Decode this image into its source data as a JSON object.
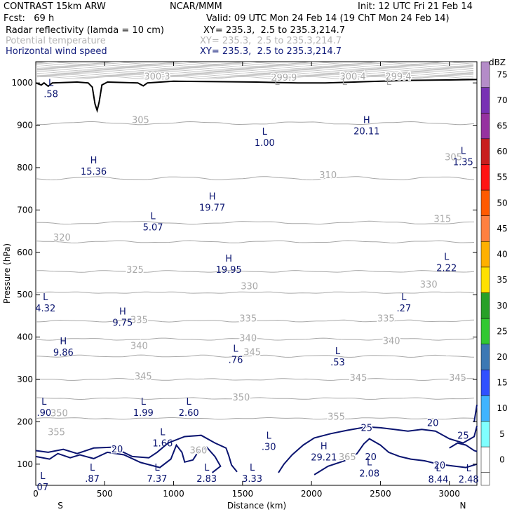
{
  "header": {
    "model": "CONTRAST 15km ARW",
    "org": "NCAR/MMM",
    "init": "Init: 12 UTC Fri 21 Feb 14",
    "fcst": "Fcst:   69 h",
    "valid": "Valid: 09 UTC Mon 24 Feb 14 (19 ChT Mon 24 Feb 14)",
    "field1": "Radar reflectivity (lamda = 10 cm)",
    "field1_xy": "XY= 235.3,  2.5 to 235.3,214.7",
    "field2": "Potential temperature",
    "field2_xy": "XY= 235.3,  2.5 to 235.3,214.7",
    "field3": "Horizontal wind speed",
    "field3_xy": "XY= 235.3,  2.5 to 235.3,214.7"
  },
  "colors": {
    "wind_contour": "#0a1470",
    "theta_contour": "#a8a8a8",
    "terrain": "#000000"
  },
  "chart_data": {
    "type": "cross-section",
    "xlabel": "Distance (km)",
    "ylabel": "Pressure (hPa)",
    "xlim": [
      0,
      3200
    ],
    "ylim": [
      1050,
      50
    ],
    "x_ticks": [
      0,
      500,
      1000,
      1500,
      2000,
      2500,
      3000
    ],
    "y_ticks": [
      100,
      200,
      300,
      400,
      500,
      600,
      700,
      800,
      900,
      1000
    ],
    "x_end_labels": {
      "left": "S",
      "right": "N"
    },
    "colorbar": {
      "title": "dBZ",
      "levels": [
        0,
        5,
        10,
        15,
        20,
        25,
        30,
        35,
        40,
        45,
        50,
        55,
        60,
        65,
        70,
        75
      ],
      "colors": [
        "#ffffff",
        "#80ffff",
        "#40b4ff",
        "#3050ff",
        "#3c78b4",
        "#32c832",
        "#28a028",
        "#ffe000",
        "#ffb000",
        "#ff8040",
        "#ff5a00",
        "#ff1414",
        "#c81e1e",
        "#9632a0",
        "#7832b4",
        "#b48cc8"
      ]
    },
    "theta_labels": [
      {
        "x": 1180,
        "p": 125,
        "text": "360"
      },
      {
        "x": 2260,
        "p": 110,
        "text": "365"
      },
      {
        "x": 150,
        "p": 168,
        "text": "355"
      },
      {
        "x": 2180,
        "p": 205,
        "text": "355"
      },
      {
        "x": 170,
        "p": 213,
        "text": "350"
      },
      {
        "x": 1490,
        "p": 250,
        "text": "350"
      },
      {
        "x": 780,
        "p": 300,
        "text": "345"
      },
      {
        "x": 2340,
        "p": 297,
        "text": "345"
      },
      {
        "x": 3060,
        "p": 297,
        "text": "345"
      },
      {
        "x": 1570,
        "p": 357,
        "text": "345"
      },
      {
        "x": 750,
        "p": 372,
        "text": "340"
      },
      {
        "x": 1540,
        "p": 390,
        "text": "340"
      },
      {
        "x": 2580,
        "p": 384,
        "text": "340"
      },
      {
        "x": 750,
        "p": 433,
        "text": "335"
      },
      {
        "x": 1540,
        "p": 437,
        "text": "335"
      },
      {
        "x": 2540,
        "p": 437,
        "text": "335"
      },
      {
        "x": 1550,
        "p": 513,
        "text": "330"
      },
      {
        "x": 2850,
        "p": 517,
        "text": "330"
      },
      {
        "x": 720,
        "p": 552,
        "text": "325"
      },
      {
        "x": 190,
        "p": 628,
        "text": "320"
      },
      {
        "x": 2950,
        "p": 672,
        "text": "315"
      },
      {
        "x": 2120,
        "p": 775,
        "text": "310"
      },
      {
        "x": 3030,
        "p": 817,
        "text": "305"
      },
      {
        "x": 760,
        "p": 905,
        "text": "305"
      },
      {
        "x": 880,
        "p": 1008,
        "text": "300.3"
      },
      {
        "x": 1800,
        "p": 1005,
        "text": "299.9"
      },
      {
        "x": 2300,
        "p": 1008,
        "text": "300.4"
      },
      {
        "x": 2630,
        "p": 1008,
        "text": "299.4"
      }
    ],
    "theta_L_marks": [
      {
        "x": 1750,
        "p": 995
      },
      {
        "x": 2240,
        "p": 995
      },
      {
        "x": 2560,
        "p": 995
      }
    ],
    "wind_labels": [
      {
        "x": 590,
        "p": 128,
        "text": "20"
      },
      {
        "x": 2400,
        "p": 178,
        "text": "25"
      },
      {
        "x": 2430,
        "p": 110,
        "text": "20"
      },
      {
        "x": 2930,
        "p": 90,
        "text": "20"
      },
      {
        "x": 2880,
        "p": 190,
        "text": "20"
      },
      {
        "x": 3100,
        "p": 160,
        "text": "25"
      }
    ],
    "extrema": [
      {
        "kind": "L",
        "x": 50,
        "p": 65,
        "value": "07"
      },
      {
        "kind": "L",
        "x": 410,
        "p": 85,
        "value": ".87"
      },
      {
        "kind": "L",
        "x": 880,
        "p": 85,
        "value": "7.37"
      },
      {
        "kind": "L",
        "x": 1240,
        "p": 85,
        "value": "2.83"
      },
      {
        "kind": "L",
        "x": 1570,
        "p": 85,
        "value": "3.33"
      },
      {
        "kind": "L",
        "x": 2420,
        "p": 97,
        "value": "2.08"
      },
      {
        "kind": "L",
        "x": 2920,
        "p": 83,
        "value": "8.44"
      },
      {
        "kind": "L",
        "x": 3140,
        "p": 83,
        "value": "2.48"
      },
      {
        "kind": "L",
        "x": 920,
        "p": 168,
        "value": "1.66"
      },
      {
        "kind": "L",
        "x": 1690,
        "p": 160,
        "value": ".30"
      },
      {
        "kind": "H",
        "x": 2090,
        "p": 135,
        "value": "29.21"
      },
      {
        "kind": "L",
        "x": 60,
        "p": 240,
        "value": ".90"
      },
      {
        "kind": "L",
        "x": 780,
        "p": 240,
        "value": "1.99"
      },
      {
        "kind": "L",
        "x": 1110,
        "p": 240,
        "value": "2.60"
      },
      {
        "kind": "L",
        "x": 1450,
        "p": 365,
        "value": ".76"
      },
      {
        "kind": "L",
        "x": 2190,
        "p": 360,
        "value": ".53"
      },
      {
        "kind": "H",
        "x": 200,
        "p": 383,
        "value": "9.86"
      },
      {
        "kind": "H",
        "x": 630,
        "p": 453,
        "value": "9.75"
      },
      {
        "kind": "L",
        "x": 70,
        "p": 487,
        "value": "4.32"
      },
      {
        "kind": "L",
        "x": 2670,
        "p": 487,
        "value": ".27"
      },
      {
        "kind": "H",
        "x": 1400,
        "p": 578,
        "value": "19.95"
      },
      {
        "kind": "L",
        "x": 2980,
        "p": 582,
        "value": "2.22"
      },
      {
        "kind": "L",
        "x": 850,
        "p": 678,
        "value": "5.07"
      },
      {
        "kind": "H",
        "x": 1280,
        "p": 725,
        "value": "19.77"
      },
      {
        "kind": "H",
        "x": 420,
        "p": 810,
        "value": "15.36"
      },
      {
        "kind": "L",
        "x": 1660,
        "p": 878,
        "value": "1.00"
      },
      {
        "kind": "L",
        "x": 3100,
        "p": 832,
        "value": "1.35"
      },
      {
        "kind": "H",
        "x": 2400,
        "p": 905,
        "value": "20.11"
      },
      {
        "kind": "L",
        "x": 110,
        "p": 993,
        "value": ".58"
      }
    ]
  }
}
